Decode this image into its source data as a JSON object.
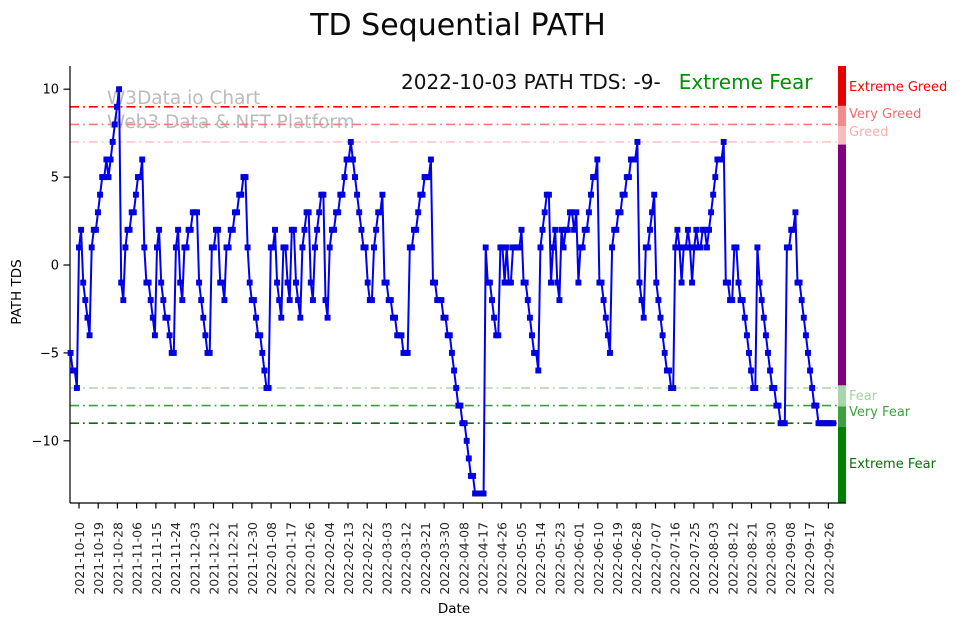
{
  "title": "TD Sequential PATH",
  "annotation": {
    "text": "2022-10-03 PATH TDS: -9-",
    "status": "Extreme Fear",
    "status_color": "#009200"
  },
  "watermark": {
    "line1": "W3Data.io Chart",
    "line2": "Web3 Data & NFT Platform"
  },
  "chart_data": {
    "type": "line",
    "title": "TD Sequential PATH",
    "xlabel": "Date",
    "ylabel": "PATH TDS",
    "grid": false,
    "legend": "none",
    "line_color": "#0000ef",
    "marker": "square",
    "ylim": [
      -13.54,
      11.32
    ],
    "y_ticks": [
      {
        "label": "10",
        "value": 10
      },
      {
        "label": "5",
        "value": 5
      },
      {
        "label": "0",
        "value": 0
      },
      {
        "label": "−5",
        "value": -5
      },
      {
        "label": "−10",
        "value": -10
      }
    ],
    "x_tick_labels": [
      "2021-10-10",
      "2021-10-19",
      "2021-10-28",
      "2021-11-06",
      "2021-11-15",
      "2021-11-24",
      "2021-12-03",
      "2021-12-12",
      "2021-12-21",
      "2021-12-30",
      "2022-01-08",
      "2022-01-17",
      "2022-01-26",
      "2022-02-04",
      "2022-02-13",
      "2022-02-22",
      "2022-03-03",
      "2022-03-12",
      "2022-03-21",
      "2022-03-30",
      "2022-04-08",
      "2022-04-17",
      "2022-04-26",
      "2022-05-05",
      "2022-05-14",
      "2022-05-23",
      "2022-06-01",
      "2022-06-10",
      "2022-06-19",
      "2022-06-28",
      "2022-07-07",
      "2022-07-16",
      "2022-07-25",
      "2022-08-03",
      "2022-08-12",
      "2022-08-21",
      "2022-08-30",
      "2022-09-08",
      "2022-09-17",
      "2022-09-26"
    ],
    "reference_lines": [
      {
        "label": "Extreme Greed",
        "value": 9,
        "color": "#ff0000"
      },
      {
        "label": "Very Greed",
        "value": 8,
        "color": "#f87b7b"
      },
      {
        "label": "Greed",
        "value": 7,
        "color": "#fbc6c6"
      },
      {
        "label": "Fear",
        "value": -7,
        "color": "#a9d6a9"
      },
      {
        "label": "Very Fear",
        "value": -8,
        "color": "#3f9e3f"
      },
      {
        "label": "Extreme Fear",
        "value": -9,
        "color": "#0b6e0b"
      }
    ],
    "zone_bar": [
      {
        "from": 11.32,
        "to": 9.05,
        "color": "#e60000"
      },
      {
        "from": 9.05,
        "to": 7.9,
        "color": "#f28b8b"
      },
      {
        "from": 7.9,
        "to": 6.85,
        "color": "#f8bcbc"
      },
      {
        "from": 6.85,
        "to": -6.85,
        "color": "#800080"
      },
      {
        "from": -6.85,
        "to": -8.05,
        "color": "#a9d6a9"
      },
      {
        "from": -8.05,
        "to": -9.2,
        "color": "#3f9e3f"
      },
      {
        "from": -9.2,
        "to": -13.54,
        "color": "#008000"
      }
    ],
    "zone_labels": [
      {
        "text": "Extreme Greed",
        "value": 10.0,
        "color": "#ff0000"
      },
      {
        "text": "Very Greed",
        "value": 8.45,
        "color": "#f46d6d"
      },
      {
        "text": "Greed",
        "value": 7.45,
        "color": "#f6b0b0"
      },
      {
        "text": "Fear",
        "value": -7.55,
        "color": "#a3d3a3"
      },
      {
        "text": "Very Fear",
        "value": -8.45,
        "color": "#3da13d"
      },
      {
        "text": "Extreme Fear",
        "value": -11.45,
        "color": "#0b6e0b"
      }
    ],
    "series": [
      {
        "name": "PATH TDS",
        "start_date": "2021-10-06",
        "end_date": "2022-10-03",
        "frequency": "daily",
        "values": [
          -5,
          -6,
          -6,
          -7,
          1,
          2,
          -1,
          -2,
          -3,
          -4,
          1,
          2,
          2,
          3,
          4,
          5,
          5,
          6,
          5,
          6,
          7,
          8,
          9,
          10,
          -1,
          -2,
          1,
          2,
          2,
          3,
          3,
          4,
          5,
          5,
          6,
          1,
          -1,
          -1,
          -2,
          -3,
          -4,
          1,
          2,
          -1,
          -2,
          -3,
          -3,
          -4,
          -5,
          -5,
          1,
          2,
          -1,
          -2,
          1,
          1,
          2,
          2,
          3,
          3,
          3,
          -1,
          -2,
          -3,
          -4,
          -5,
          -5,
          1,
          1,
          2,
          2,
          -1,
          -1,
          -2,
          1,
          1,
          2,
          2,
          3,
          3,
          4,
          4,
          5,
          5,
          1,
          -1,
          -2,
          -2,
          -3,
          -4,
          -4,
          -5,
          -6,
          -7,
          -7,
          1,
          1,
          2,
          -1,
          -2,
          -3,
          1,
          1,
          -1,
          -2,
          2,
          2,
          -1,
          -2,
          -3,
          1,
          2,
          3,
          3,
          -1,
          -2,
          1,
          2,
          3,
          4,
          4,
          -2,
          -3,
          1,
          2,
          2,
          3,
          3,
          4,
          4,
          5,
          6,
          6,
          7,
          6,
          5,
          4,
          3,
          2,
          1,
          1,
          -1,
          -2,
          -2,
          1,
          2,
          3,
          3,
          4,
          -1,
          -1,
          -2,
          -2,
          -3,
          -3,
          -4,
          -4,
          -4,
          -5,
          -5,
          -5,
          1,
          1,
          2,
          2,
          3,
          4,
          4,
          5,
          5,
          5,
          6,
          -1,
          -1,
          -2,
          -2,
          -2,
          -3,
          -3,
          -4,
          -4,
          -5,
          -6,
          -7,
          -8,
          -8,
          -9,
          -9,
          -10,
          -11,
          -12,
          -12,
          -13,
          -13,
          -13,
          -13,
          -13,
          1,
          -1,
          -1,
          -2,
          -3,
          -4,
          -4,
          1,
          1,
          -1,
          1,
          -1,
          -1,
          1,
          1,
          1,
          1,
          2,
          -1,
          -1,
          -2,
          -3,
          -4,
          -5,
          -5,
          -6,
          1,
          2,
          3,
          4,
          4,
          -1,
          1,
          2,
          -1,
          -2,
          2,
          1,
          2,
          2,
          3,
          3,
          2,
          3,
          -1,
          1,
          1,
          2,
          2,
          3,
          4,
          5,
          5,
          6,
          -1,
          -1,
          -2,
          -3,
          -4,
          -5,
          1,
          2,
          2,
          3,
          3,
          4,
          4,
          5,
          5,
          6,
          6,
          6,
          7,
          -1,
          -2,
          -3,
          1,
          1,
          2,
          3,
          4,
          -1,
          -2,
          -3,
          -4,
          -5,
          -6,
          -6,
          -7,
          -7,
          1,
          2,
          1,
          -1,
          1,
          1,
          2,
          1,
          -1,
          1,
          2,
          1,
          1,
          2,
          2,
          1,
          2,
          3,
          4,
          5,
          6,
          6,
          6,
          7,
          -1,
          -1,
          -2,
          -2,
          1,
          1,
          -1,
          -2,
          -2,
          -3,
          -4,
          -5,
          -6,
          -7,
          -7,
          1,
          -1,
          -2,
          -3,
          -4,
          -5,
          -6,
          -7,
          -7,
          -8,
          -8,
          -9,
          -9,
          -9,
          1,
          1,
          2,
          2,
          3,
          -1,
          -1,
          -2,
          -3,
          -4,
          -5,
          -6,
          -7,
          -8,
          -8,
          -9,
          -9,
          -9,
          -9,
          -9,
          -9,
          -9,
          -9
        ]
      }
    ]
  }
}
